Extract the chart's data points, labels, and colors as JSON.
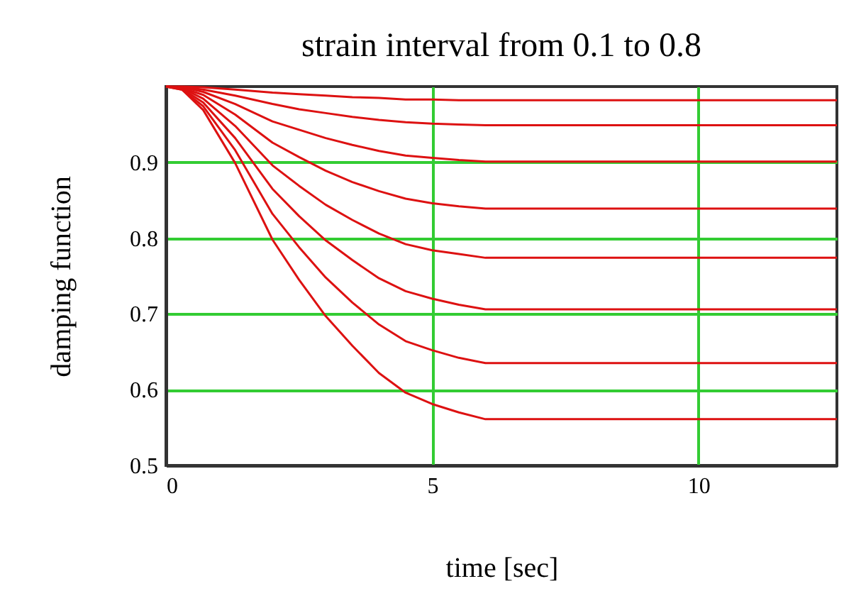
{
  "chart_data": {
    "type": "line",
    "title": "strain interval from 0.1 to 0.8",
    "xlabel": "time [sec]",
    "ylabel": "damping function",
    "x": [
      0,
      0.3,
      0.7,
      1.3,
      2,
      2.5,
      3,
      3.5,
      4,
      4.5,
      5,
      5.5,
      6,
      12.6
    ],
    "series": [
      {
        "color": "#dd1111",
        "values": [
          1,
          1.0,
          0.999,
          0.996,
          0.992,
          0.99,
          0.988,
          0.986,
          0.985,
          0.983,
          0.983,
          0.982,
          0.982,
          0.982
        ]
      },
      {
        "color": "#dd1111",
        "values": [
          1,
          0.999,
          0.996,
          0.988,
          0.977,
          0.97,
          0.965,
          0.96,
          0.956,
          0.953,
          0.951,
          0.95,
          0.949,
          0.949
        ]
      },
      {
        "color": "#dd1111",
        "values": [
          1,
          0.999,
          0.993,
          0.977,
          0.954,
          0.943,
          0.932,
          0.923,
          0.915,
          0.909,
          0.906,
          0.903,
          0.901,
          0.901
        ]
      },
      {
        "color": "#dd1111",
        "values": [
          1,
          0.998,
          0.989,
          0.963,
          0.926,
          0.907,
          0.889,
          0.874,
          0.862,
          0.852,
          0.846,
          0.842,
          0.839,
          0.839
        ]
      },
      {
        "color": "#dd1111",
        "values": [
          1,
          0.998,
          0.984,
          0.948,
          0.896,
          0.869,
          0.844,
          0.824,
          0.806,
          0.792,
          0.784,
          0.779,
          0.774,
          0.774
        ]
      },
      {
        "color": "#dd1111",
        "values": [
          1,
          0.997,
          0.979,
          0.932,
          0.865,
          0.829,
          0.797,
          0.771,
          0.747,
          0.73,
          0.72,
          0.712,
          0.706,
          0.706
        ]
      },
      {
        "color": "#dd1111",
        "values": [
          1,
          0.996,
          0.974,
          0.916,
          0.832,
          0.788,
          0.748,
          0.715,
          0.686,
          0.664,
          0.652,
          0.642,
          0.635,
          0.635
        ]
      },
      {
        "color": "#dd1111",
        "values": [
          1,
          0.996,
          0.969,
          0.899,
          0.798,
          0.745,
          0.697,
          0.658,
          0.622,
          0.596,
          0.581,
          0.57,
          0.561,
          0.561
        ]
      }
    ],
    "xlim": [
      0,
      12.6
    ],
    "ylim": [
      0.5,
      1.0
    ],
    "xticks": [
      0,
      5,
      10
    ],
    "yticks": [
      0.5,
      0.6,
      0.7,
      0.8,
      0.9
    ],
    "grid": true,
    "legend": false,
    "marker": "none",
    "line_style": "solid"
  }
}
